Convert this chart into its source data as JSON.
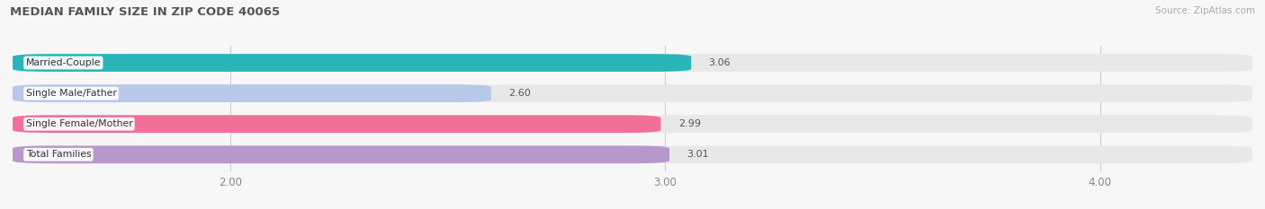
{
  "title": "MEDIAN FAMILY SIZE IN ZIP CODE 40065",
  "source": "Source: ZipAtlas.com",
  "categories": [
    "Married-Couple",
    "Single Male/Father",
    "Single Female/Mother",
    "Total Families"
  ],
  "values": [
    3.06,
    2.6,
    2.99,
    3.01
  ],
  "bar_colors": [
    "#2ab5b8",
    "#b8c8e8",
    "#f07098",
    "#b898cc"
  ],
  "xlim_left": 1.5,
  "xlim_right": 4.35,
  "xticks": [
    2.0,
    3.0,
    4.0
  ],
  "xtick_labels": [
    "2.00",
    "3.00",
    "4.00"
  ],
  "bar_height": 0.58,
  "background_color": "#f7f7f7",
  "bg_bar_color": "#e8e8e8",
  "value_labels": [
    "3.06",
    "2.60",
    "2.99",
    "3.01"
  ]
}
